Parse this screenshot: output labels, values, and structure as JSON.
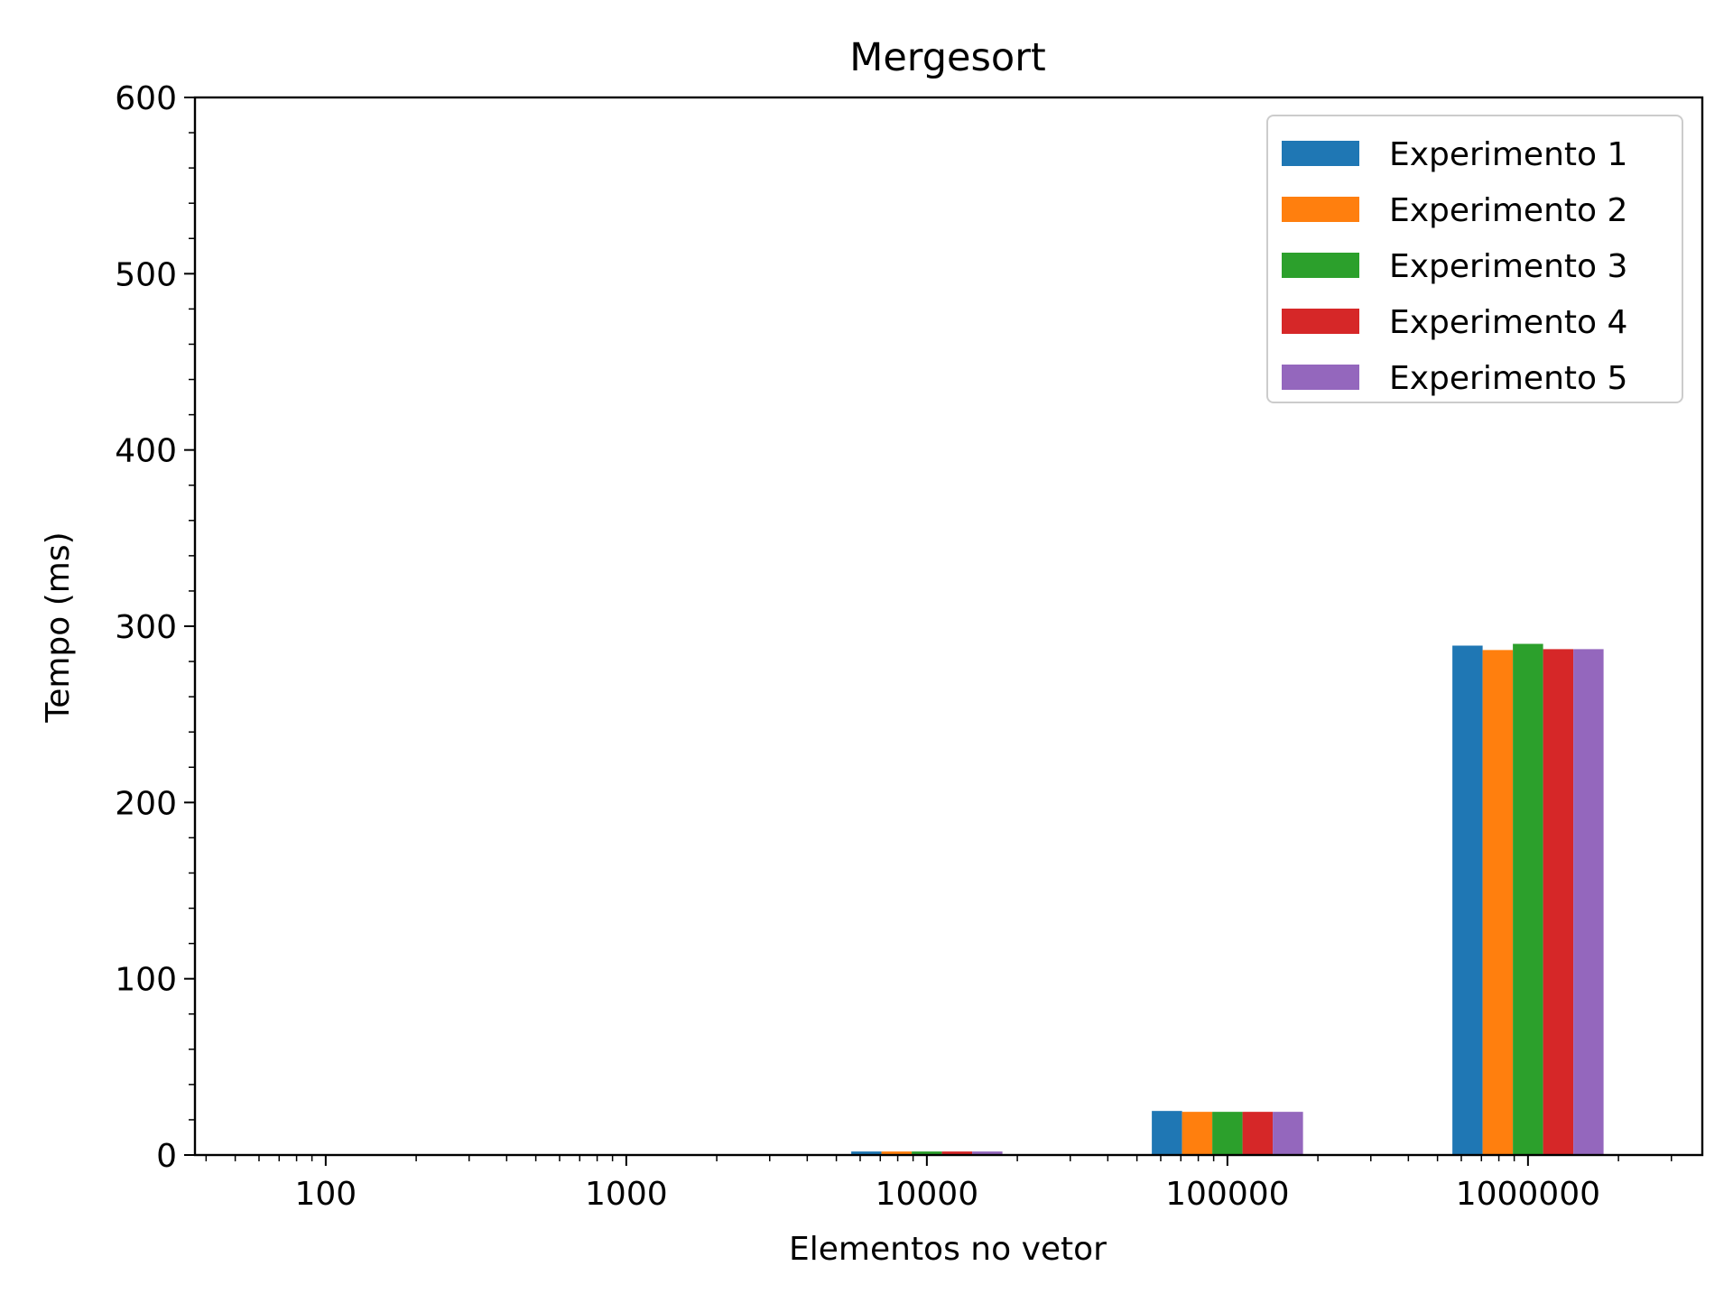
{
  "chart_data": {
    "type": "bar",
    "title": "Mergesort",
    "xlabel": "Elementos no vetor",
    "ylabel": "Tempo (ms)",
    "x_scale": "log",
    "categories": [
      "100",
      "1000",
      "10000",
      "100000",
      "1000000"
    ],
    "ylim": [
      0,
      600
    ],
    "yticks": [
      "0",
      "100",
      "200",
      "300",
      "400",
      "500",
      "600"
    ],
    "legend_position": "top-right",
    "grid": false,
    "series": [
      {
        "name": "Experimento 1",
        "color": "#1f77b4",
        "values": [
          0,
          0.1,
          2,
          25,
          289
        ]
      },
      {
        "name": "Experimento 2",
        "color": "#ff7f0e",
        "values": [
          0,
          0.1,
          2,
          24.5,
          286.5
        ]
      },
      {
        "name": "Experimento 3",
        "color": "#2ca02c",
        "values": [
          0,
          0.1,
          2,
          24.5,
          290
        ]
      },
      {
        "name": "Experimento 4",
        "color": "#d62728",
        "values": [
          0,
          0.1,
          2,
          24.5,
          287
        ]
      },
      {
        "name": "Experimento 5",
        "color": "#9467bd",
        "values": [
          0,
          0.1,
          2,
          24.5,
          287
        ]
      }
    ]
  }
}
